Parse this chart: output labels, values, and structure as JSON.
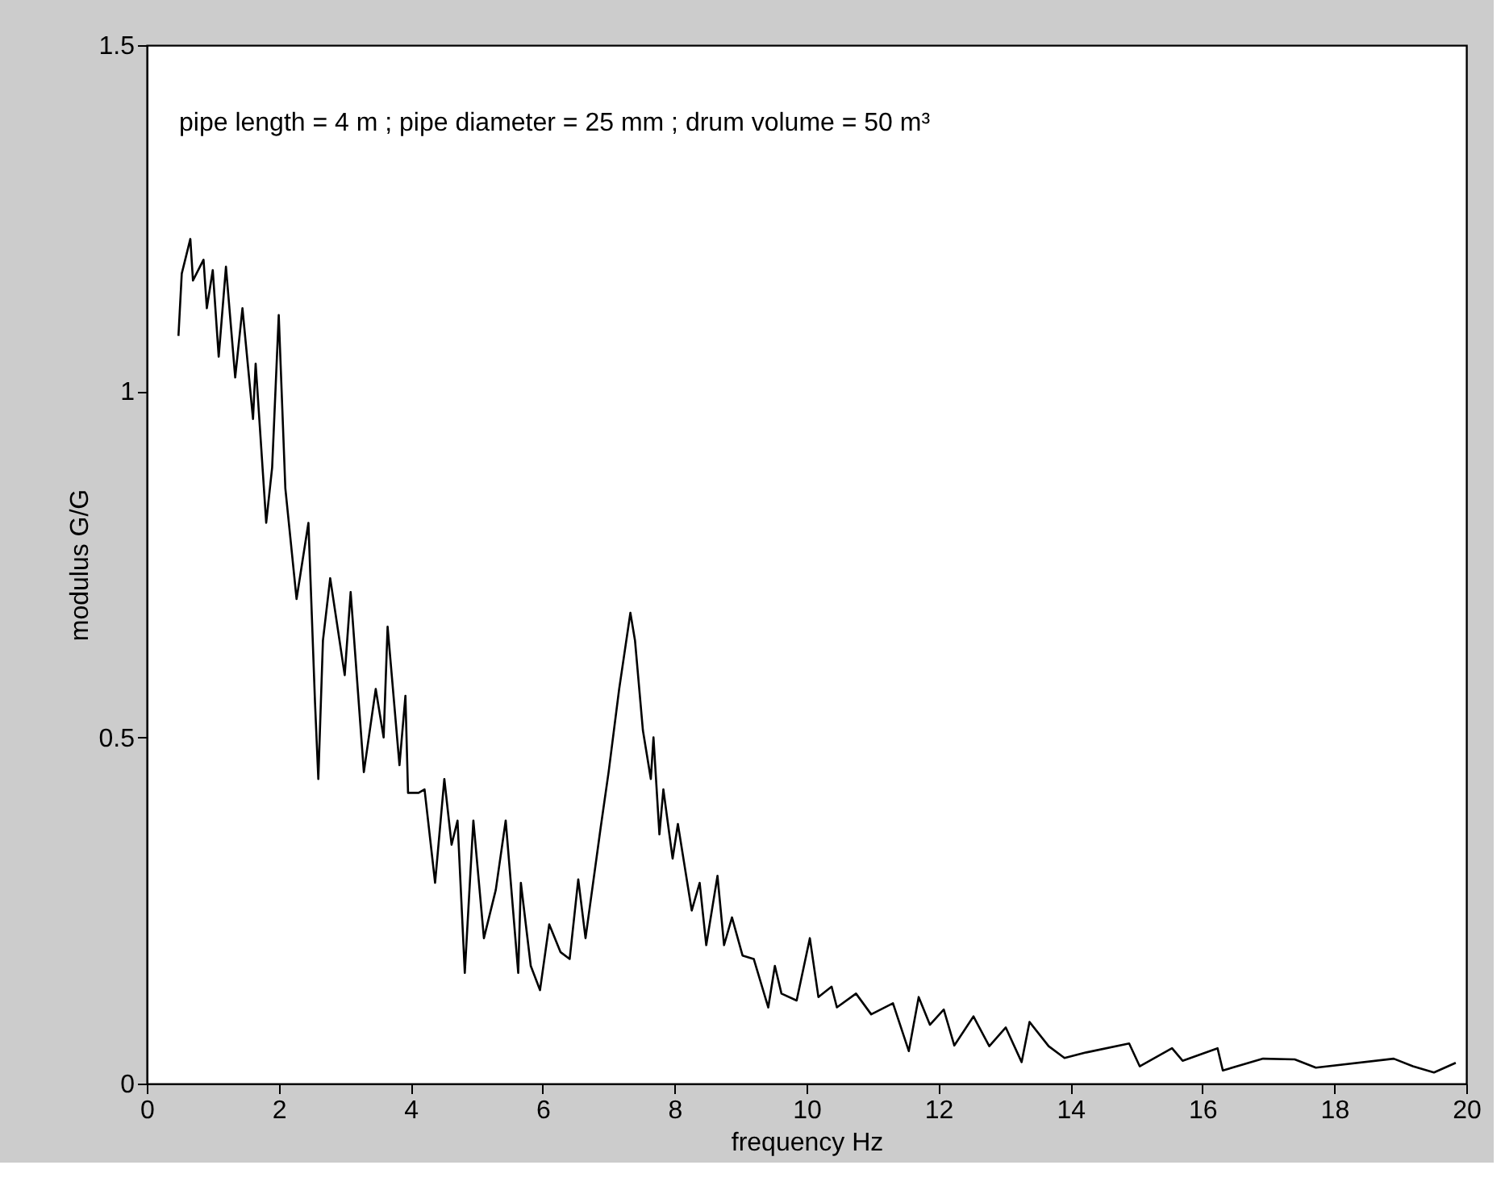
{
  "chart_data": {
    "type": "line",
    "xlabel": "frequency Hz",
    "ylabel": "modulus G/G",
    "annotations": [
      "pipe length = 4 m ; pipe diameter = 25 mm ; drum volume = 50 m³"
    ],
    "xlim": [
      0,
      20
    ],
    "ylim": [
      0,
      1.5
    ],
    "xticks": [
      0,
      2,
      4,
      6,
      8,
      10,
      12,
      14,
      16,
      18,
      20
    ],
    "yticks": [
      0,
      0.5,
      1,
      1.5
    ],
    "grid": false,
    "marker": "none",
    "line_style": "solid",
    "series": [
      {
        "color": "#000000",
        "x": [
          0.48,
          0.53,
          0.66,
          0.7,
          0.86,
          0.91,
          1.0,
          1.09,
          1.2,
          1.34,
          1.45,
          1.61,
          1.65,
          1.81,
          1.9,
          2.0,
          2.1,
          2.27,
          2.45,
          2.55,
          2.6,
          2.67,
          2.78,
          3.0,
          3.09,
          3.29,
          3.47,
          3.59,
          3.65,
          3.83,
          3.92,
          3.96,
          4.12,
          4.21,
          4.37,
          4.51,
          4.62,
          4.71,
          4.82,
          4.95,
          5.11,
          5.29,
          5.44,
          5.63,
          5.67,
          5.82,
          5.96,
          6.1,
          6.27,
          6.41,
          6.54,
          6.65,
          6.88,
          7.0,
          7.16,
          7.33,
          7.4,
          7.52,
          7.64,
          7.68,
          7.77,
          7.83,
          7.97,
          8.05,
          8.26,
          8.38,
          8.48,
          8.65,
          8.75,
          8.87,
          9.03,
          9.2,
          9.42,
          9.52,
          9.62,
          9.85,
          10.05,
          10.18,
          10.38,
          10.46,
          10.75,
          10.98,
          11.31,
          11.55,
          11.7,
          11.87,
          12.08,
          12.24,
          12.53,
          12.77,
          13.02,
          13.26,
          13.38,
          13.67,
          13.91,
          14.24,
          14.89,
          15.05,
          15.54,
          15.7,
          16.23,
          16.31,
          16.92,
          17.4,
          17.72,
          18.9,
          19.19,
          19.51,
          19.84
        ],
        "values": [
          1.08,
          1.17,
          1.22,
          1.16,
          1.19,
          1.12,
          1.175,
          1.05,
          1.18,
          1.02,
          1.12,
          0.96,
          1.04,
          0.81,
          0.89,
          1.11,
          0.86,
          0.7,
          0.81,
          0.55,
          0.44,
          0.64,
          0.73,
          0.59,
          0.71,
          0.45,
          0.57,
          0.5,
          0.66,
          0.46,
          0.56,
          0.42,
          0.42,
          0.425,
          0.29,
          0.44,
          0.345,
          0.38,
          0.16,
          0.38,
          0.21,
          0.28,
          0.38,
          0.16,
          0.29,
          0.17,
          0.135,
          0.23,
          0.19,
          0.18,
          0.295,
          0.21,
          0.37,
          0.45,
          0.57,
          0.68,
          0.64,
          0.51,
          0.44,
          0.5,
          0.36,
          0.425,
          0.325,
          0.375,
          0.25,
          0.29,
          0.2,
          0.3,
          0.2,
          0.24,
          0.185,
          0.18,
          0.11,
          0.17,
          0.13,
          0.12,
          0.21,
          0.125,
          0.14,
          0.11,
          0.13,
          0.1,
          0.116,
          0.047,
          0.125,
          0.085,
          0.107,
          0.055,
          0.097,
          0.054,
          0.081,
          0.031,
          0.089,
          0.054,
          0.037,
          0.045,
          0.058,
          0.025,
          0.051,
          0.033,
          0.051,
          0.019,
          0.036,
          0.035,
          0.023,
          0.036,
          0.025,
          0.016,
          0.03
        ]
      }
    ]
  }
}
